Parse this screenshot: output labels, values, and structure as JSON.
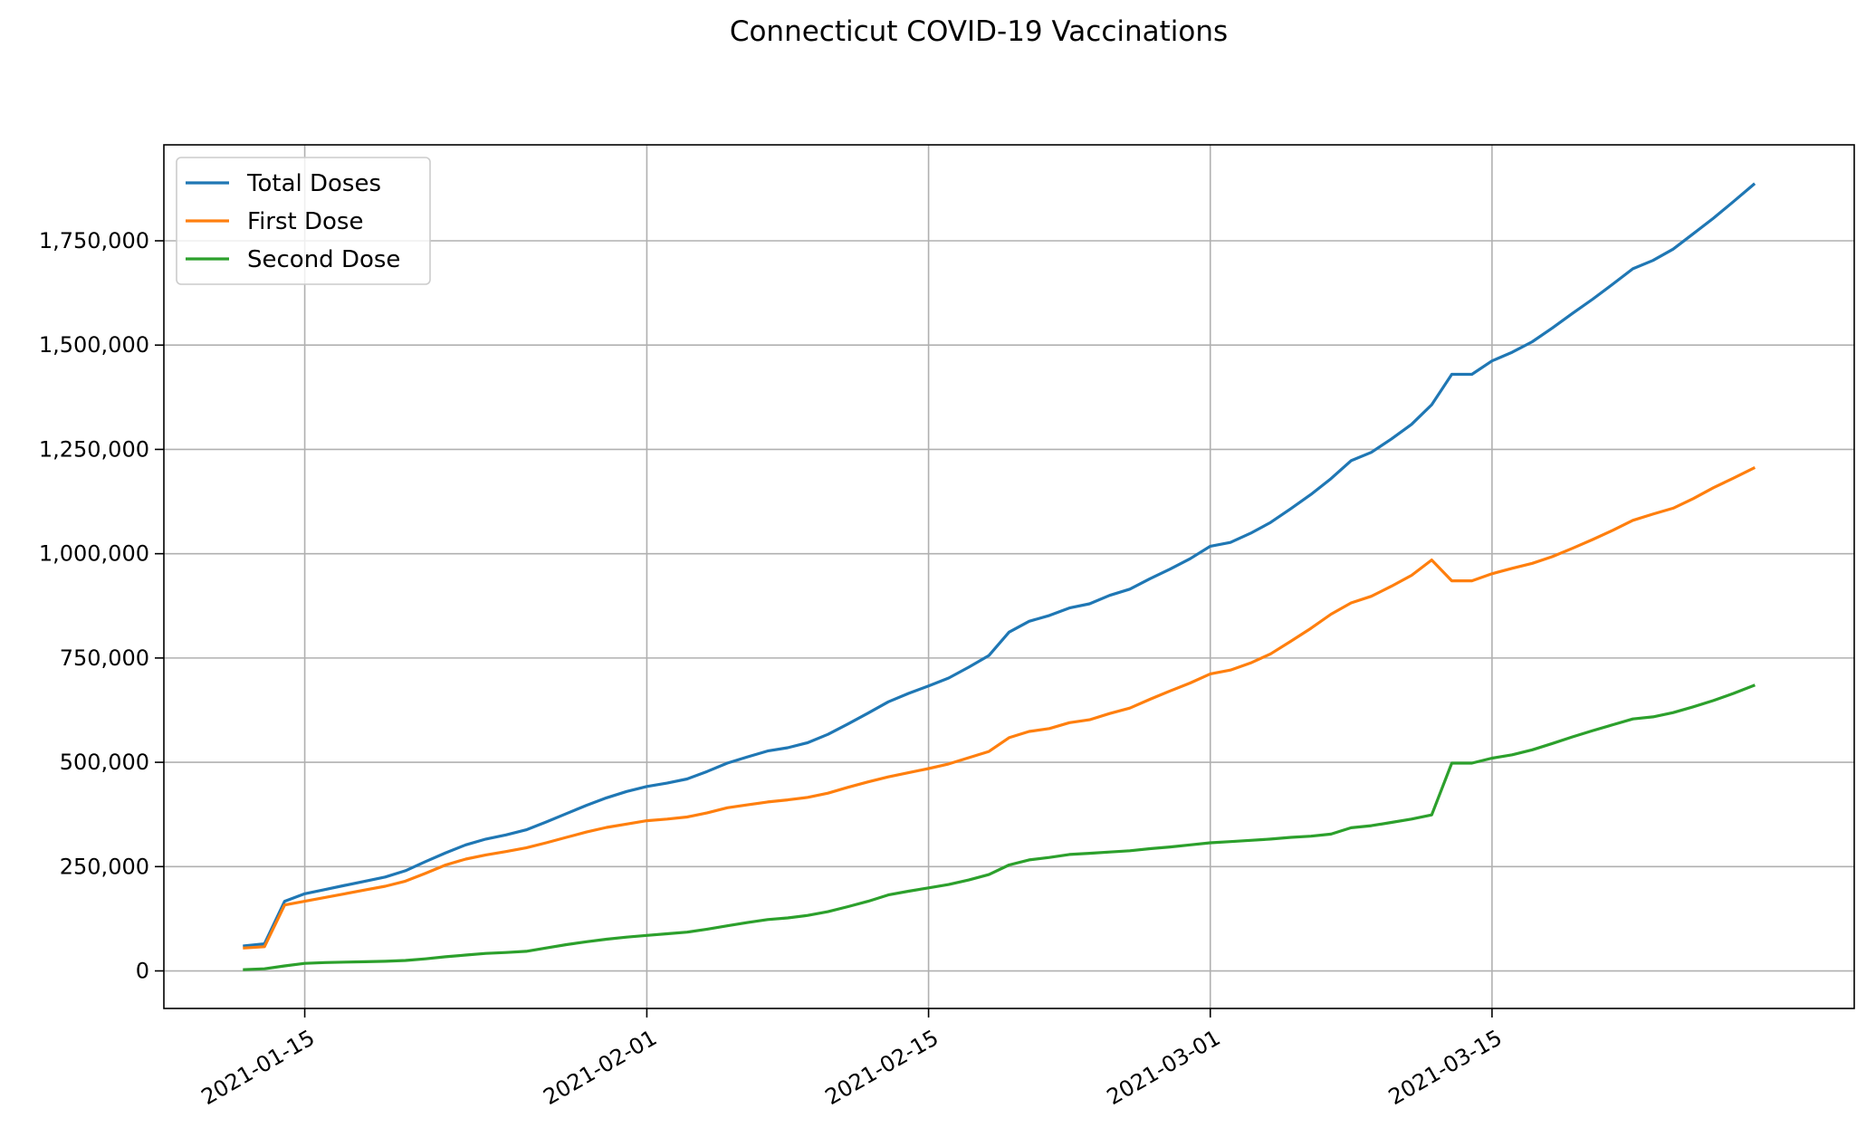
{
  "chart_data": {
    "type": "line",
    "title": "Connecticut COVID-19 Vaccinations",
    "xlabel": "",
    "ylabel": "",
    "xlim": [
      "2021-01-08",
      "2021-04-02"
    ],
    "ylim": [
      -90000,
      1980000
    ],
    "grid": true,
    "legend_position": "top-left",
    "x_tick_labels": [
      "2021-01-15",
      "2021-02-01",
      "2021-02-15",
      "2021-03-01",
      "2021-03-15"
    ],
    "y_ticks": [
      0,
      250000,
      500000,
      750000,
      1000000,
      1250000,
      1500000,
      1750000
    ],
    "y_tick_labels": [
      "0",
      "250,000",
      "500,000",
      "750,000",
      "1,000,000",
      "1,250,000",
      "1,500,000",
      "1,750,000"
    ],
    "x": [
      "2021-01-12",
      "2021-01-13",
      "2021-01-14",
      "2021-01-15",
      "2021-01-16",
      "2021-01-17",
      "2021-01-18",
      "2021-01-19",
      "2021-01-20",
      "2021-01-21",
      "2021-01-22",
      "2021-01-23",
      "2021-01-24",
      "2021-01-25",
      "2021-01-26",
      "2021-01-27",
      "2021-01-28",
      "2021-01-29",
      "2021-01-30",
      "2021-01-31",
      "2021-02-01",
      "2021-02-02",
      "2021-02-03",
      "2021-02-04",
      "2021-02-05",
      "2021-02-06",
      "2021-02-07",
      "2021-02-08",
      "2021-02-09",
      "2021-02-10",
      "2021-02-11",
      "2021-02-12",
      "2021-02-13",
      "2021-02-14",
      "2021-02-15",
      "2021-02-16",
      "2021-02-17",
      "2021-02-18",
      "2021-02-19",
      "2021-02-20",
      "2021-02-21",
      "2021-02-22",
      "2021-02-23",
      "2021-02-24",
      "2021-02-25",
      "2021-02-26",
      "2021-02-27",
      "2021-02-28",
      "2021-03-01",
      "2021-03-02",
      "2021-03-03",
      "2021-03-04",
      "2021-03-05",
      "2021-03-06",
      "2021-03-07",
      "2021-03-08",
      "2021-03-09",
      "2021-03-10",
      "2021-03-11",
      "2021-03-12",
      "2021-03-13",
      "2021-03-14",
      "2021-03-15",
      "2021-03-16",
      "2021-03-17",
      "2021-03-18",
      "2021-03-19",
      "2021-03-20",
      "2021-03-21",
      "2021-03-22",
      "2021-03-23",
      "2021-03-24",
      "2021-03-25",
      "2021-03-26",
      "2021-03-27",
      "2021-03-28"
    ],
    "series": [
      {
        "name": "Total Doses",
        "color": "#1f77b4",
        "values": [
          60000,
          65000,
          167000,
          185000,
          195000,
          205000,
          215000,
          225000,
          240000,
          262000,
          283000,
          302000,
          316000,
          326000,
          338000,
          357000,
          377000,
          397000,
          415000,
          430000,
          442000,
          450000,
          460000,
          478000,
          498000,
          513000,
          527000,
          535000,
          547000,
          567000,
          592000,
          618000,
          645000,
          665000,
          683000,
          702000,
          728000,
          756000,
          812000,
          838000,
          852000,
          870000,
          880000,
          900000,
          915000,
          940000,
          963000,
          988000,
          1018000,
          1027000,
          1049000,
          1075000,
          1108000,
          1142000,
          1180000,
          1223000,
          1243000,
          1275000,
          1310000,
          1357000,
          1430000,
          1430000,
          1462000,
          1483000,
          1508000,
          1541000,
          1576000,
          1610000,
          1646000,
          1683000,
          1703000,
          1730000,
          1767000,
          1804000,
          1844000,
          1885000
        ]
      },
      {
        "name": "First Dose",
        "color": "#ff7f0e",
        "values": [
          55000,
          58000,
          158000,
          167000,
          176000,
          185000,
          194000,
          203000,
          215000,
          234000,
          254000,
          268000,
          278000,
          286000,
          295000,
          307000,
          320000,
          333000,
          344000,
          352000,
          360000,
          364000,
          369000,
          379000,
          391000,
          398000,
          405000,
          410000,
          416000,
          426000,
          440000,
          453000,
          465000,
          475000,
          485000,
          496000,
          511000,
          526000,
          559000,
          574000,
          581000,
          595000,
          602000,
          617000,
          630000,
          651000,
          671000,
          690000,
          712000,
          721000,
          738000,
          760000,
          790000,
          821000,
          855000,
          882000,
          898000,
          922000,
          948000,
          985000,
          935000,
          935000,
          952000,
          965000,
          977000,
          993000,
          1013000,
          1034000,
          1056000,
          1080000,
          1095000,
          1109000,
          1132000,
          1158000,
          1181000,
          1205000
        ]
      },
      {
        "name": "Second Dose",
        "color": "#2ca02c",
        "values": [
          3000,
          5000,
          12000,
          18000,
          20000,
          21000,
          22000,
          23000,
          25000,
          29000,
          34000,
          38000,
          42000,
          44000,
          47000,
          55000,
          63000,
          70000,
          76000,
          81000,
          85000,
          89000,
          93000,
          100000,
          108000,
          116000,
          123000,
          127000,
          133000,
          142000,
          154000,
          167000,
          182000,
          191000,
          199000,
          207000,
          218000,
          231000,
          254000,
          266000,
          272000,
          279000,
          282000,
          285000,
          288000,
          293000,
          297000,
          302000,
          307000,
          310000,
          313000,
          316000,
          320000,
          323000,
          328000,
          343000,
          348000,
          356000,
          364000,
          374000,
          498000,
          498000,
          510000,
          518000,
          530000,
          545000,
          561000,
          576000,
          590000,
          604000,
          609000,
          619000,
          633000,
          648000,
          665000,
          684000
        ]
      }
    ]
  }
}
